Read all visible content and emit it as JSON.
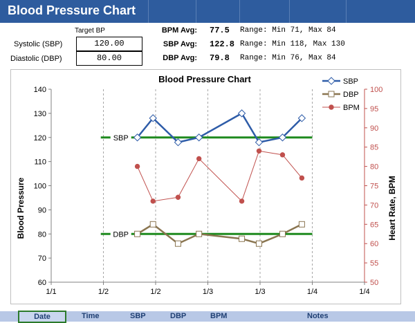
{
  "app": {
    "title": "Blood Pressure Chart"
  },
  "targets": {
    "header": "Target BP",
    "systolic_label": "Systolic (SBP)",
    "systolic_value": "120.00",
    "diastolic_label": "Diastolic (DBP)",
    "diastolic_value": "80.00"
  },
  "stats": [
    {
      "label": "BPM Avg:",
      "value": "77.5",
      "range": "Range: Min 71, Max 84"
    },
    {
      "label": "SBP Avg:",
      "value": "122.8",
      "range": "Range: Min 118, Max 130"
    },
    {
      "label": "DBP Avg:",
      "value": "79.8",
      "range": "Range: Min 76, Max 84"
    }
  ],
  "table": {
    "columns": [
      "Date",
      "Time",
      "SBP",
      "DBP",
      "BPM",
      "Notes"
    ]
  },
  "chart_data": {
    "type": "line",
    "title": "Blood Pressure Chart",
    "ylabel": "Blood Pressure",
    "y2label": "Heart Rate, BPM",
    "ylim": [
      60,
      140
    ],
    "y2lim": [
      50,
      100
    ],
    "yticks": [
      60,
      70,
      80,
      90,
      100,
      110,
      120,
      130,
      140
    ],
    "y2ticks": [
      50,
      55,
      60,
      65,
      70,
      75,
      80,
      85,
      90,
      95,
      100
    ],
    "xlim": [
      0,
      6
    ],
    "xtick_labels": [
      "1/1",
      "1/2",
      "1/2",
      "1/3",
      "1/3",
      "1/4",
      "1/4"
    ],
    "grid": "vertical dashed",
    "legend_position": "top-right",
    "target_lines": [
      {
        "label": "SBP",
        "value": 120,
        "x_start": 0.95,
        "x_end": 5.0,
        "color": "#1e8a1e"
      },
      {
        "label": "DBP",
        "value": 80,
        "x_start": 0.95,
        "x_end": 5.0,
        "color": "#1e8a1e"
      }
    ],
    "series": [
      {
        "name": "SBP",
        "axis": "left",
        "color": "#2e5ca8",
        "marker": "diamond",
        "x": [
          1.65,
          1.95,
          2.43,
          2.83,
          3.65,
          3.98,
          4.43,
          4.8
        ],
        "y": [
          120,
          128,
          118,
          120,
          130,
          118,
          120,
          128
        ]
      },
      {
        "name": "DBP",
        "axis": "left",
        "color": "#8a7550",
        "marker": "square",
        "x": [
          1.65,
          1.95,
          2.43,
          2.83,
          3.65,
          3.98,
          4.43,
          4.8
        ],
        "y": [
          80,
          84,
          76,
          80,
          78,
          76,
          80,
          84
        ]
      },
      {
        "name": "BPM",
        "axis": "right",
        "color": "#c0504d",
        "marker": "circle",
        "x": [
          1.65,
          1.95,
          2.43,
          2.83,
          3.65,
          3.98,
          4.43,
          4.8
        ],
        "y": [
          80,
          71,
          72,
          82,
          71,
          84,
          83,
          77
        ]
      }
    ]
  }
}
